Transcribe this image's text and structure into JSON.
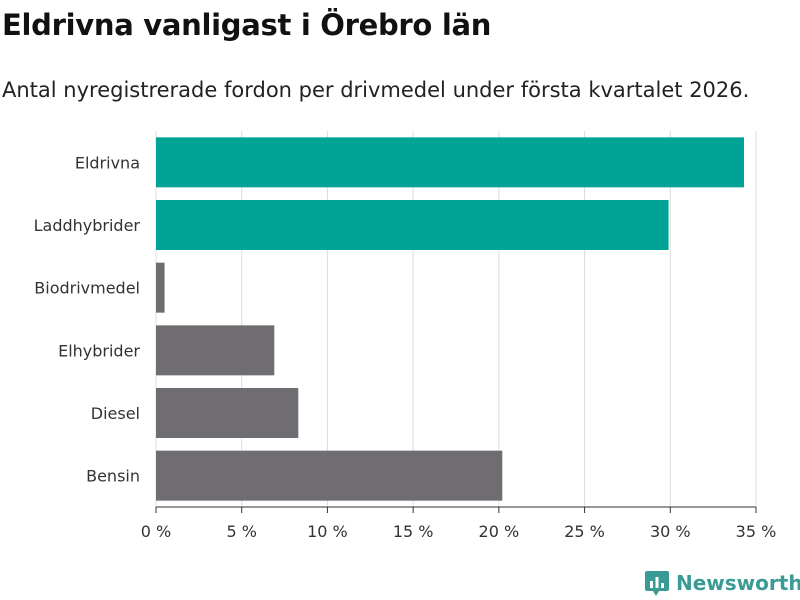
{
  "title": "Eldrivna vanligast i Örebro län",
  "subtitle": "Antal nyregistrerade fordon per drivmedel under första kvartalet 2026.",
  "brand": {
    "name": "Newsworthy",
    "icon": "newsworthy-logo-icon",
    "color": "#3a9a94"
  },
  "colors": {
    "highlight": "#00a396",
    "default": "#6f6d72",
    "grid": "#dddddd"
  },
  "chart_data": {
    "type": "bar",
    "orientation": "horizontal",
    "title": "Eldrivna vanligast i Örebro län",
    "subtitle": "Antal nyregistrerade fordon per drivmedel under första kvartalet 2026.",
    "xlabel": "",
    "ylabel": "",
    "unit": "%",
    "xlim": [
      0,
      35
    ],
    "ticks": [
      0,
      5,
      10,
      15,
      20,
      25,
      30,
      35
    ],
    "tick_labels": [
      "0 %",
      "5 %",
      "10 %",
      "15 %",
      "20 %",
      "25 %",
      "30 %",
      "35 %"
    ],
    "categories": [
      "Eldrivna",
      "Laddhybrider",
      "Biodrivmedel",
      "Elhybrider",
      "Diesel",
      "Bensin"
    ],
    "values": [
      34.3,
      29.9,
      0.5,
      6.9,
      8.3,
      20.2
    ],
    "highlighted": [
      true,
      true,
      false,
      false,
      false,
      false
    ],
    "grid": true
  }
}
